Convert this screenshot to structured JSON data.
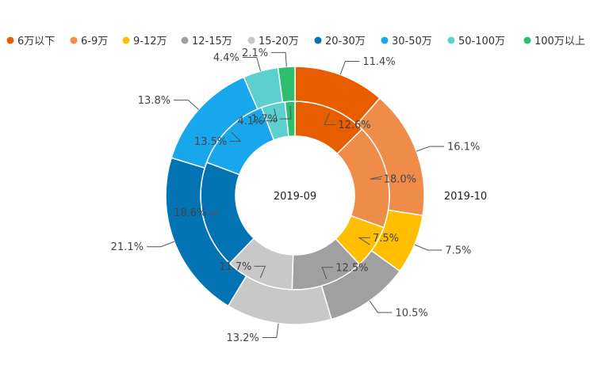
{
  "chart_data": {
    "type": "pie",
    "subtype": "nested-donut",
    "legend_position": "top",
    "categories": [
      "6万以下",
      "6-9万",
      "9-12万",
      "12-15万",
      "15-20万",
      "20-30万",
      "30-50万",
      "50-100万",
      "100万以上"
    ],
    "colors": [
      "#e85d00",
      "#f08c4a",
      "#ffbf00",
      "#a0a0a0",
      "#c8c8c8",
      "#0473b4",
      "#18a6ec",
      "#5ccfcf",
      "#2fbe6e"
    ],
    "series": [
      {
        "name": "2019-09",
        "ring": "inner",
        "values": [
          12.6,
          18.0,
          7.5,
          12.5,
          11.7,
          18.6,
          13.5,
          4.1,
          1.7
        ],
        "labels": [
          "12.6%",
          "18.0%",
          "7.5%",
          "12.5%",
          "11.7%",
          "18.6%",
          "13.5%",
          "4.1%",
          "1.7%"
        ]
      },
      {
        "name": "2019-10",
        "ring": "outer",
        "values": [
          11.4,
          16.1,
          7.5,
          10.5,
          13.2,
          21.1,
          13.8,
          4.4,
          2.1
        ],
        "labels": [
          "11.4%",
          "16.1%",
          "7.5%",
          "10.5%",
          "13.2%",
          "21.1%",
          "13.8%",
          "4.4%",
          "2.1%"
        ]
      }
    ]
  }
}
